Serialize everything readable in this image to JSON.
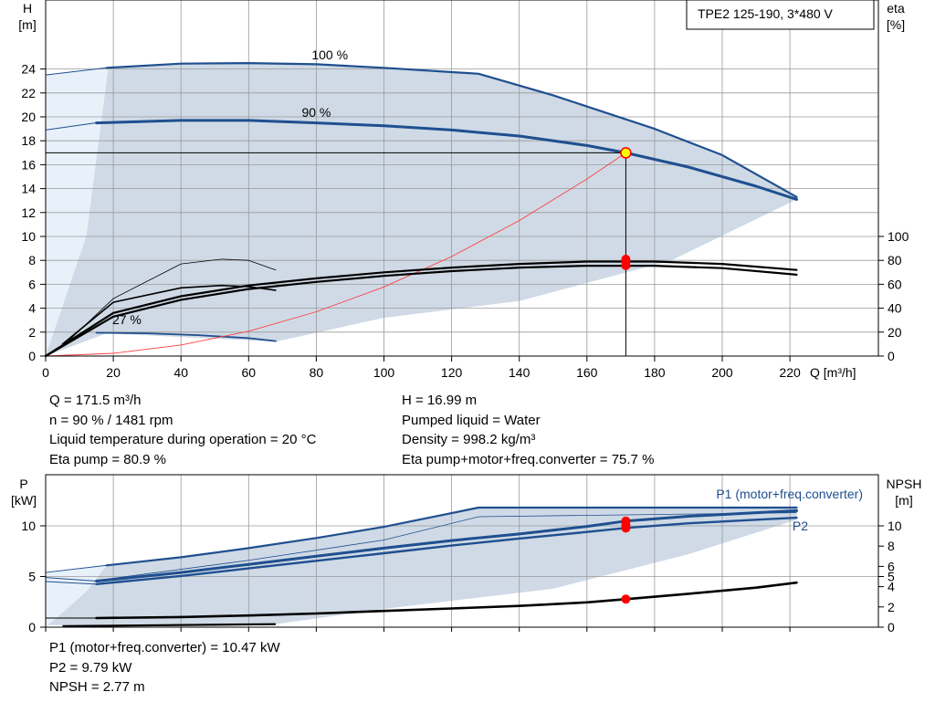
{
  "upper_chart": {
    "title_box": "TPE2 125-190, 3*480 V",
    "y_left_label": [
      "H",
      "[m]"
    ],
    "y_right_label": [
      "eta",
      "[%]"
    ],
    "x_label": "Q [m³/h]",
    "x_ticks": [
      "0",
      "20",
      "40",
      "60",
      "80",
      "100",
      "120",
      "140",
      "160",
      "180",
      "200",
      "220"
    ],
    "y_left_ticks": [
      "0",
      "2",
      "4",
      "6",
      "8",
      "10",
      "12",
      "14",
      "16",
      "18",
      "20",
      "22",
      "24"
    ],
    "y_right_ticks": [
      "0",
      "20",
      "40",
      "60",
      "80",
      "100"
    ],
    "curve_labels": {
      "c100": "100 %",
      "c90": "90 %",
      "c27": "27 %"
    }
  },
  "info_left": [
    "Q = 171.5 m³/h",
    "n = 90 % / 1481 rpm",
    "Liquid temperature during operation = 20 °C",
    "Eta pump = 80.9 %"
  ],
  "info_right": [
    "H = 16.99 m",
    "Pumped liquid = Water",
    "Density = 998.2 kg/m³",
    "Eta pump+motor+freq.converter = 75.7 %"
  ],
  "lower_chart": {
    "y_left_label": [
      "P",
      "[kW]"
    ],
    "y_right_label": [
      "NPSH",
      "[m]"
    ],
    "y_left_ticks": [
      "0",
      "5",
      "10"
    ],
    "y_right_ticks": [
      "0",
      "2",
      "4",
      "5",
      "6",
      "8",
      "10"
    ],
    "series_labels": {
      "p1": "P1 (motor+freq.converter)",
      "p2": "P2"
    }
  },
  "info_bottom": [
    "P1 (motor+freq.converter) = 10.47 kW",
    "P2 = 9.79 kW",
    "NPSH = 2.77 m"
  ],
  "colors": {
    "curve_blue": "#1f4f8f",
    "area_fill": "#cfdae6",
    "area_light": "#e8f1fa",
    "grid": "#9a9a9a",
    "marker_red": "#ff0000",
    "system_curve": "#ff4040",
    "duty_marker_fill": "#ffff00"
  },
  "chart_data": [
    {
      "type": "line",
      "title": "TPE2 125-190, 3*480 V",
      "xlabel": "Q [m³/h]",
      "ylabel": "H [m]",
      "ylabel_right": "eta [%]",
      "xlim": [
        0,
        240
      ],
      "ylim": [
        0,
        26
      ],
      "ylim_right": [
        0,
        100
      ],
      "series": [
        {
          "name": "100 %",
          "axis": "H",
          "x": [
            0,
            18,
            40,
            60,
            80,
            100,
            128,
            150,
            180,
            200,
            222
          ],
          "values": [
            23.5,
            24.1,
            24.45,
            24.5,
            24.4,
            24.1,
            23.6,
            21.8,
            19.0,
            16.8,
            13.3
          ]
        },
        {
          "name": "90 %",
          "axis": "H",
          "x": [
            0,
            15,
            40,
            60,
            80,
            100,
            120,
            140,
            160,
            171.5,
            190,
            210,
            222
          ],
          "values": [
            18.9,
            19.5,
            19.7,
            19.7,
            19.5,
            19.25,
            18.9,
            18.4,
            17.6,
            16.99,
            15.8,
            14.2,
            13.1
          ]
        },
        {
          "name": "27 %",
          "axis": "H",
          "x": [
            15,
            30,
            45,
            60,
            68
          ],
          "values": [
            1.95,
            1.9,
            1.75,
            1.5,
            1.25
          ]
        },
        {
          "name": "",
          "axis": "H",
          "x": [
            0,
            20,
            40,
            60,
            80,
            100,
            120,
            140,
            160,
            171.5
          ],
          "values": [
            0,
            0.23,
            0.92,
            2.08,
            3.7,
            5.78,
            8.32,
            11.33,
            14.8,
            16.99
          ]
        },
        {
          "name": "",
          "axis": "eta",
          "x": [
            0,
            20,
            40,
            60,
            80,
            100,
            120,
            140,
            160,
            180,
            200,
            222
          ],
          "values": [
            0,
            36,
            50,
            59,
            65,
            70,
            74,
            77,
            79,
            79,
            77,
            72
          ]
        },
        {
          "name": "",
          "axis": "eta",
          "x": [
            0,
            20,
            40,
            60,
            80,
            100,
            120,
            140,
            160,
            180,
            200,
            222
          ],
          "values": [
            0,
            33,
            47,
            56,
            62,
            67,
            71,
            74,
            75.5,
            75.5,
            73.5,
            68
          ]
        },
        {
          "name": "",
          "axis": "eta",
          "x": [
            5,
            20,
            40,
            52,
            60,
            68
          ],
          "values": [
            10,
            45,
            57,
            59,
            58,
            55
          ]
        },
        {
          "name": "",
          "axis": "eta",
          "x": [
            5,
            20,
            40,
            52,
            60,
            68
          ],
          "values": [
            8,
            48,
            77,
            81,
            80,
            72
          ]
        }
      ],
      "duty_point": {
        "x": 171.5,
        "H": 16.99,
        "eta_pump": 80.9,
        "eta_total": 75.7
      }
    },
    {
      "type": "line",
      "xlabel": "Q [m³/h]",
      "ylabel": "P [kW]",
      "ylabel_right": "NPSH [m]",
      "xlim": [
        0,
        240
      ],
      "ylim": [
        0,
        13
      ],
      "ylim_right": [
        0,
        13
      ],
      "series": [
        {
          "name": "P1 (motor+freq.converter)",
          "x": [
            15,
            40,
            60,
            80,
            100,
            120,
            140,
            160,
            171.5,
            190,
            210,
            222
          ],
          "values": [
            4.55,
            5.4,
            6.2,
            7.0,
            7.8,
            8.55,
            9.2,
            9.95,
            10.47,
            10.95,
            11.3,
            11.5
          ]
        },
        {
          "name": "P2",
          "x": [
            15,
            40,
            60,
            80,
            100,
            120,
            140,
            160,
            171.5,
            190,
            210,
            222
          ],
          "values": [
            4.25,
            5.05,
            5.8,
            6.55,
            7.3,
            8.05,
            8.75,
            9.4,
            9.79,
            10.25,
            10.6,
            10.8
          ]
        },
        {
          "name": "",
          "x": [
            18,
            40,
            60,
            80,
            100,
            128,
            150,
            180,
            200,
            222
          ],
          "values": [
            6.1,
            6.9,
            7.8,
            8.8,
            9.9,
            11.8,
            11.8,
            11.8,
            11.8,
            11.8
          ]
        },
        {
          "name": "NPSH",
          "x": [
            15,
            40,
            60,
            80,
            100,
            120,
            140,
            160,
            171.5,
            190,
            210,
            222
          ],
          "values": [
            0.9,
            1.0,
            1.15,
            1.35,
            1.6,
            1.85,
            2.1,
            2.45,
            2.77,
            3.3,
            3.9,
            4.4
          ]
        }
      ],
      "duty_point": {
        "x": 171.5,
        "P1": 10.47,
        "P2": 9.79,
        "NPSH": 2.77
      }
    }
  ]
}
